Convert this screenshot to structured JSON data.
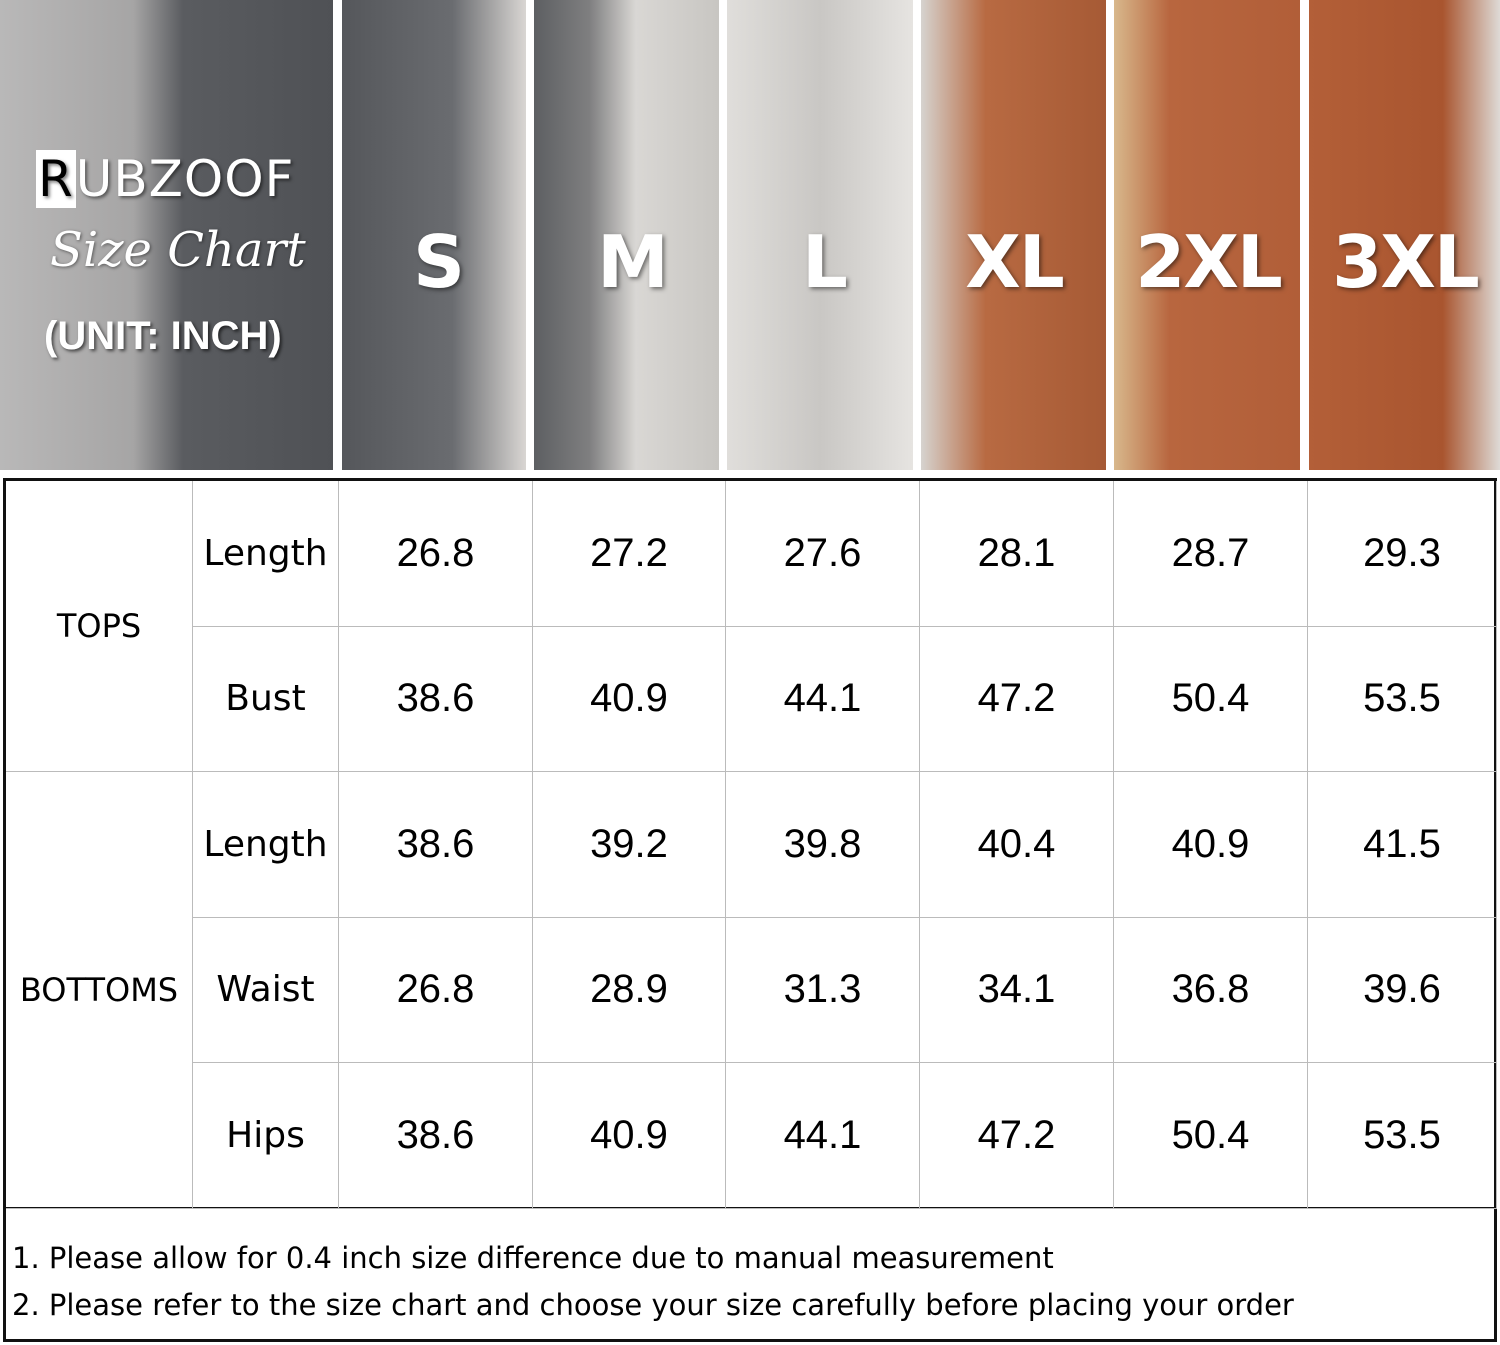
{
  "header": {
    "brand": "RUBZOOF",
    "subtitle": "Size Chart",
    "unit": "(UNIT: INCH)"
  },
  "sizes": [
    "S",
    "M",
    "L",
    "XL",
    "2XL",
    "3XL"
  ],
  "colors": {
    "gray_shirt": "#55575b",
    "rust_shirt": "#b35f38"
  },
  "table": {
    "groups": [
      {
        "name": "TOPS",
        "rows": [
          {
            "label": "Length",
            "values": [
              "26.8",
              "27.2",
              "27.6",
              "28.1",
              "28.7",
              "29.3"
            ]
          },
          {
            "label": "Bust",
            "values": [
              "38.6",
              "40.9",
              "44.1",
              "47.2",
              "50.4",
              "53.5"
            ]
          }
        ]
      },
      {
        "name": "BOTTOMS",
        "rows": [
          {
            "label": "Length",
            "values": [
              "38.6",
              "39.2",
              "39.8",
              "40.4",
              "40.9",
              "41.5"
            ]
          },
          {
            "label": "Waist",
            "values": [
              "26.8",
              "28.9",
              "31.3",
              "34.1",
              "36.8",
              "39.6"
            ]
          },
          {
            "label": "Hips",
            "values": [
              "38.6",
              "40.9",
              "44.1",
              "47.2",
              "50.4",
              "53.5"
            ]
          }
        ]
      }
    ]
  },
  "notes": [
    "1. Please allow for 0.4 inch size difference due to manual measurement",
    "2. Please refer to the size chart and choose your size carefully before placing your order"
  ]
}
